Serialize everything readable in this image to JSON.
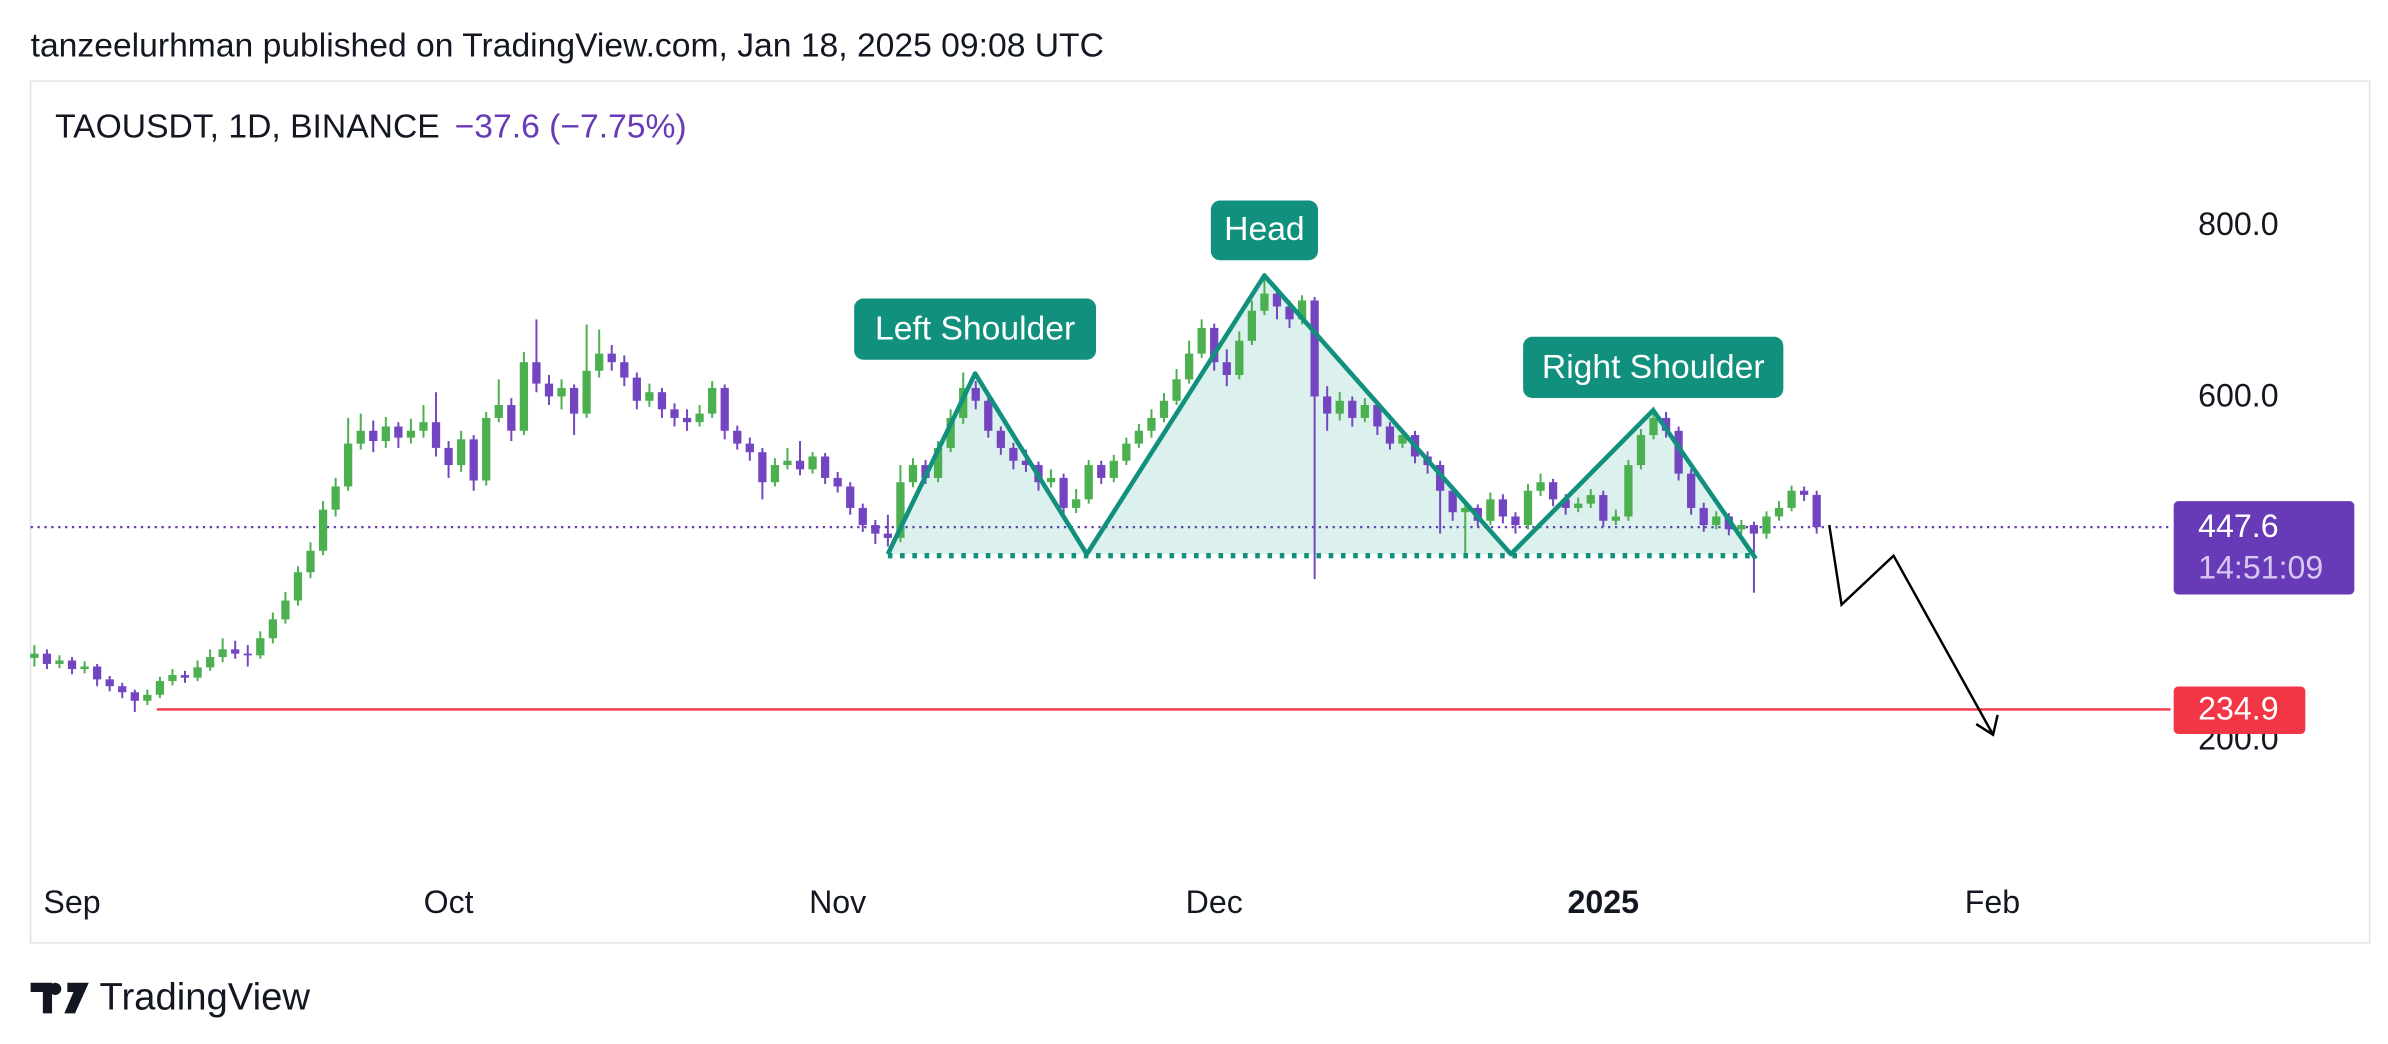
{
  "header": "tanzeelurhman published on TradingView.com, Jan 18, 2025 09:08 UTC",
  "footer": "TradingView",
  "chart_data": {
    "type": "candlestick",
    "title": "TAOUSDT, 1D, BINANCE",
    "change": "−37.6 (−7.75%)",
    "up_color": "#4caf50",
    "down_color": "#7445c0",
    "xlim": [
      -3.3,
      167.2
    ],
    "xticks": [
      {
        "value": 0,
        "label": "Sep"
      },
      {
        "value": 30,
        "label": "Oct"
      },
      {
        "value": 61,
        "label": "Nov"
      },
      {
        "value": 91,
        "label": "Dec"
      },
      {
        "value": 122,
        "label": "2025"
      },
      {
        "value": 153,
        "label": "Feb"
      }
    ],
    "ylim": [
      40,
      880
    ],
    "yticks": [
      {
        "value": 200,
        "label": "200.0"
      },
      {
        "value": 600,
        "label": "600.0"
      },
      {
        "value": 800,
        "label": "800.0"
      }
    ],
    "last_price": {
      "value": 447.6,
      "countdown": "14:51:09",
      "color": "#673ab7"
    },
    "horizontal_line": {
      "value": 234.9,
      "color": "#f23645"
    },
    "annotations": [
      "Left Shoulder",
      "Head",
      "Right Shoulder"
    ],
    "x": [
      -3,
      -2,
      -1,
      0,
      1,
      2,
      3,
      4,
      5,
      6,
      7,
      8,
      9,
      10,
      11,
      12,
      13,
      14,
      15,
      16,
      17,
      18,
      19,
      20,
      21,
      22,
      23,
      24,
      25,
      26,
      27,
      28,
      29,
      30,
      31,
      32,
      33,
      34,
      35,
      36,
      37,
      38,
      39,
      40,
      41,
      42,
      43,
      44,
      45,
      46,
      47,
      48,
      49,
      50,
      51,
      52,
      53,
      54,
      55,
      56,
      57,
      58,
      59,
      60,
      61,
      62,
      63,
      64,
      65,
      66,
      67,
      68,
      69,
      70,
      71,
      72,
      73,
      74,
      75,
      76,
      77,
      78,
      79,
      80,
      81,
      82,
      83,
      84,
      85,
      86,
      87,
      88,
      89,
      90,
      91,
      92,
      93,
      94,
      95,
      96,
      97,
      98,
      99,
      100,
      101,
      102,
      103,
      104,
      105,
      106,
      107,
      108,
      109,
      110,
      111,
      112,
      113,
      114,
      115,
      116,
      117,
      118,
      119,
      120,
      121,
      122,
      123,
      124,
      125,
      126,
      127,
      128,
      129,
      130,
      131,
      132,
      133,
      134,
      135,
      136,
      137,
      138,
      139
    ],
    "ohlc": [
      [
        295,
        310,
        285,
        300
      ],
      [
        300,
        305,
        282,
        288
      ],
      [
        288,
        298,
        283,
        292
      ],
      [
        292,
        296,
        276,
        282
      ],
      [
        282,
        291,
        277,
        285
      ],
      [
        285,
        288,
        262,
        270
      ],
      [
        270,
        274,
        256,
        262
      ],
      [
        262,
        266,
        248,
        255
      ],
      [
        255,
        258,
        232,
        245
      ],
      [
        245,
        258,
        240,
        252
      ],
      [
        252,
        273,
        248,
        268
      ],
      [
        268,
        282,
        263,
        275
      ],
      [
        275,
        280,
        266,
        272
      ],
      [
        272,
        292,
        268,
        284
      ],
      [
        284,
        305,
        280,
        296
      ],
      [
        296,
        318,
        290,
        305
      ],
      [
        305,
        315,
        294,
        300
      ],
      [
        300,
        310,
        285,
        298
      ],
      [
        298,
        326,
        294,
        318
      ],
      [
        318,
        348,
        312,
        340
      ],
      [
        340,
        372,
        335,
        362
      ],
      [
        362,
        402,
        356,
        395
      ],
      [
        395,
        430,
        388,
        420
      ],
      [
        420,
        478,
        415,
        468
      ],
      [
        468,
        505,
        460,
        495
      ],
      [
        495,
        575,
        490,
        545
      ],
      [
        545,
        580,
        538,
        560
      ],
      [
        560,
        572,
        535,
        548
      ],
      [
        548,
        576,
        540,
        565
      ],
      [
        565,
        570,
        540,
        552
      ],
      [
        552,
        574,
        545,
        560
      ],
      [
        560,
        590,
        552,
        570
      ],
      [
        570,
        605,
        530,
        540
      ],
      [
        540,
        548,
        505,
        520
      ],
      [
        520,
        560,
        512,
        550
      ],
      [
        550,
        555,
        490,
        502
      ],
      [
        502,
        582,
        496,
        575
      ],
      [
        575,
        620,
        570,
        590
      ],
      [
        590,
        598,
        548,
        560
      ],
      [
        560,
        652,
        555,
        640
      ],
      [
        640,
        690,
        605,
        615
      ],
      [
        615,
        625,
        590,
        600
      ],
      [
        600,
        620,
        585,
        610
      ],
      [
        610,
        614,
        555,
        580
      ],
      [
        580,
        684,
        575,
        630
      ],
      [
        630,
        678,
        622,
        650
      ],
      [
        650,
        660,
        630,
        640
      ],
      [
        640,
        648,
        612,
        622
      ],
      [
        622,
        628,
        585,
        595
      ],
      [
        595,
        615,
        588,
        605
      ],
      [
        605,
        610,
        575,
        585
      ],
      [
        585,
        592,
        565,
        575
      ],
      [
        575,
        585,
        560,
        570
      ],
      [
        570,
        590,
        565,
        580
      ],
      [
        580,
        618,
        575,
        610
      ],
      [
        610,
        614,
        550,
        560
      ],
      [
        560,
        566,
        538,
        545
      ],
      [
        545,
        552,
        525,
        535
      ],
      [
        535,
        540,
        480,
        500
      ],
      [
        500,
        528,
        495,
        520
      ],
      [
        520,
        540,
        515,
        525
      ],
      [
        525,
        548,
        508,
        515
      ],
      [
        515,
        535,
        510,
        530
      ],
      [
        530,
        534,
        498,
        505
      ],
      [
        505,
        512,
        488,
        495
      ],
      [
        495,
        500,
        462,
        470
      ],
      [
        470,
        475,
        442,
        450
      ],
      [
        450,
        456,
        428,
        440
      ],
      [
        440,
        462,
        425,
        435
      ],
      [
        435,
        520,
        430,
        500
      ],
      [
        500,
        528,
        494,
        520
      ],
      [
        520,
        526,
        498,
        505
      ],
      [
        505,
        548,
        500,
        540
      ],
      [
        540,
        585,
        535,
        575
      ],
      [
        575,
        628,
        568,
        610
      ],
      [
        610,
        618,
        585,
        595
      ],
      [
        595,
        600,
        552,
        560
      ],
      [
        560,
        565,
        532,
        540
      ],
      [
        540,
        546,
        515,
        525
      ],
      [
        525,
        538,
        512,
        520
      ],
      [
        520,
        524,
        490,
        500
      ],
      [
        500,
        515,
        494,
        505
      ],
      [
        505,
        510,
        460,
        470
      ],
      [
        470,
        492,
        464,
        480
      ],
      [
        480,
        526,
        475,
        520
      ],
      [
        520,
        525,
        498,
        505
      ],
      [
        505,
        532,
        500,
        525
      ],
      [
        525,
        552,
        520,
        545
      ],
      [
        545,
        568,
        540,
        560
      ],
      [
        560,
        585,
        552,
        575
      ],
      [
        575,
        604,
        570,
        595
      ],
      [
        595,
        632,
        590,
        620
      ],
      [
        620,
        665,
        615,
        650
      ],
      [
        650,
        690,
        645,
        680
      ],
      [
        680,
        685,
        630,
        640
      ],
      [
        640,
        655,
        612,
        625
      ],
      [
        625,
        676,
        620,
        665
      ],
      [
        665,
        712,
        660,
        700
      ],
      [
        700,
        744,
        695,
        720
      ],
      [
        720,
        728,
        690,
        705
      ],
      [
        705,
        712,
        680,
        690
      ],
      [
        690,
        718,
        684,
        712
      ],
      [
        712,
        716,
        387,
        600
      ],
      [
        600,
        612,
        560,
        580
      ],
      [
        580,
        605,
        572,
        595
      ],
      [
        595,
        600,
        565,
        575
      ],
      [
        575,
        598,
        570,
        590
      ],
      [
        590,
        594,
        555,
        565
      ],
      [
        565,
        570,
        538,
        545
      ],
      [
        545,
        562,
        540,
        555
      ],
      [
        555,
        560,
        522,
        530
      ],
      [
        530,
        536,
        510,
        520
      ],
      [
        520,
        525,
        440,
        490
      ],
      [
        490,
        495,
        455,
        465
      ],
      [
        465,
        478,
        415,
        470
      ],
      [
        470,
        474,
        448,
        455
      ],
      [
        455,
        488,
        450,
        480
      ],
      [
        480,
        486,
        452,
        460
      ],
      [
        460,
        465,
        440,
        450
      ],
      [
        450,
        498,
        445,
        490
      ],
      [
        490,
        510,
        484,
        500
      ],
      [
        500,
        504,
        472,
        480
      ],
      [
        480,
        486,
        462,
        470
      ],
      [
        470,
        482,
        465,
        475
      ],
      [
        475,
        492,
        470,
        485
      ],
      [
        485,
        490,
        448,
        455
      ],
      [
        455,
        468,
        450,
        460
      ],
      [
        460,
        526,
        455,
        520
      ],
      [
        520,
        562,
        515,
        555
      ],
      [
        555,
        588,
        550,
        575
      ],
      [
        575,
        582,
        552,
        560
      ],
      [
        560,
        565,
        502,
        510
      ],
      [
        510,
        515,
        462,
        470
      ],
      [
        470,
        476,
        442,
        450
      ],
      [
        450,
        466,
        445,
        460
      ],
      [
        460,
        464,
        438,
        445
      ],
      [
        445,
        456,
        440,
        450
      ],
      [
        450,
        454,
        371,
        440
      ],
      [
        440,
        466,
        434,
        460
      ],
      [
        460,
        478,
        455,
        470
      ],
      [
        470,
        496,
        466,
        490
      ],
      [
        490,
        495,
        478,
        485.2
      ],
      [
        485.2,
        490,
        440,
        447.6
      ]
    ]
  }
}
